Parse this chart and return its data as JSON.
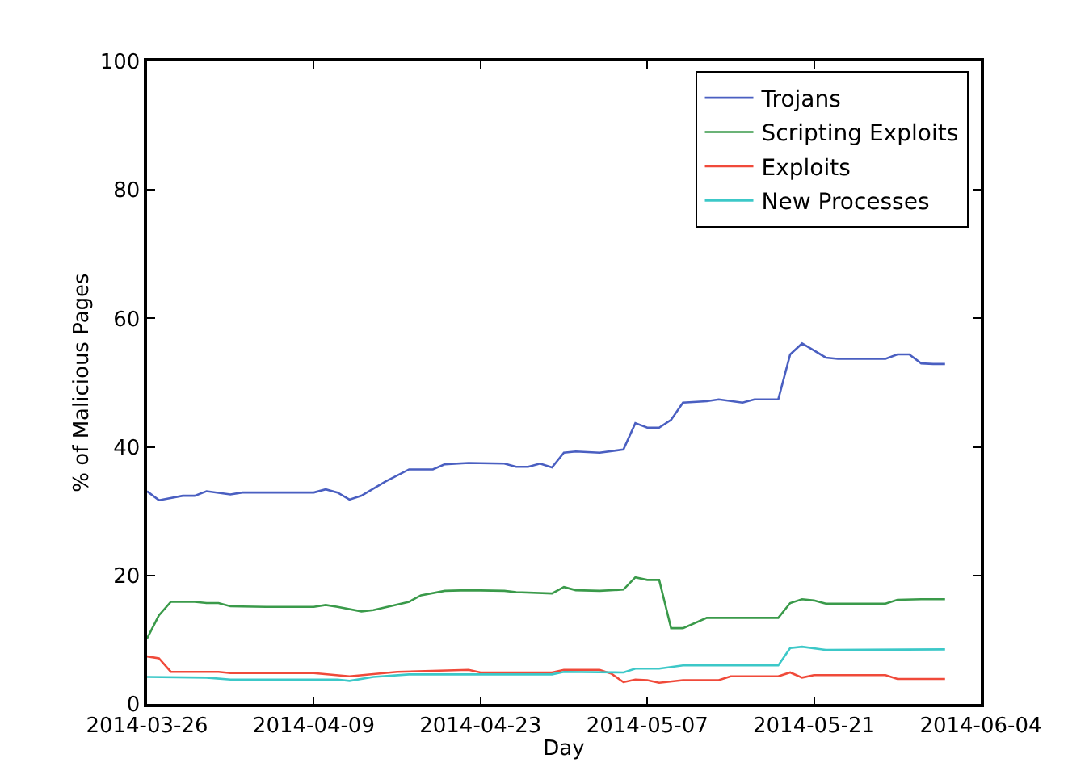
{
  "chart_data": {
    "type": "line",
    "xlabel": "Day",
    "ylabel": "% of Malicious Pages",
    "xlim": [
      "2014-03-26",
      "2014-06-04"
    ],
    "xticks": [
      "2014-03-26",
      "2014-04-09",
      "2014-04-23",
      "2014-05-07",
      "2014-05-21",
      "2014-06-04"
    ],
    "ylim": [
      0,
      100
    ],
    "yticks": [
      0,
      20,
      40,
      60,
      80,
      100
    ],
    "grid": false,
    "legend": "top right",
    "marker": "none",
    "line_style": "solid",
    "series": [
      {
        "name": "Trojans",
        "color": "#4a5fc1",
        "x": [
          "2014-03-26",
          "2014-03-27",
          "2014-03-29",
          "2014-03-30",
          "2014-03-31",
          "2014-04-02",
          "2014-04-03",
          "2014-04-09",
          "2014-04-10",
          "2014-04-11",
          "2014-04-12",
          "2014-04-13",
          "2014-04-15",
          "2014-04-17",
          "2014-04-19",
          "2014-04-20",
          "2014-04-22",
          "2014-04-25",
          "2014-04-26",
          "2014-04-27",
          "2014-04-28",
          "2014-04-29",
          "2014-04-30",
          "2014-05-01",
          "2014-05-03",
          "2014-05-05",
          "2014-05-06",
          "2014-05-07",
          "2014-05-08",
          "2014-05-09",
          "2014-05-10",
          "2014-05-12",
          "2014-05-13",
          "2014-05-15",
          "2014-05-16",
          "2014-05-18",
          "2014-05-19",
          "2014-05-20",
          "2014-05-21",
          "2014-05-22",
          "2014-05-23",
          "2014-05-27",
          "2014-05-28",
          "2014-05-29",
          "2014-05-30",
          "2014-05-31",
          "2014-06-01"
        ],
        "values": [
          33.1,
          31.7,
          32.4,
          32.4,
          33.1,
          32.6,
          32.9,
          32.9,
          33.4,
          32.9,
          31.8,
          32.4,
          34.6,
          36.5,
          36.5,
          37.3,
          37.5,
          37.4,
          36.9,
          36.9,
          37.4,
          36.8,
          39.1,
          39.3,
          39.1,
          39.6,
          43.7,
          43.0,
          43.0,
          44.2,
          46.9,
          47.1,
          47.4,
          46.9,
          47.4,
          47.4,
          54.4,
          56.1,
          55.0,
          53.9,
          53.7,
          53.7,
          54.4,
          54.4,
          53.0,
          52.9,
          52.9
        ]
      },
      {
        "name": "Scripting Exploits",
        "color": "#3a9a4a",
        "x": [
          "2014-03-26",
          "2014-03-27",
          "2014-03-28",
          "2014-03-30",
          "2014-03-31",
          "2014-04-01",
          "2014-04-02",
          "2014-04-05",
          "2014-04-09",
          "2014-04-10",
          "2014-04-11",
          "2014-04-13",
          "2014-04-14",
          "2014-04-17",
          "2014-04-18",
          "2014-04-20",
          "2014-04-22",
          "2014-04-25",
          "2014-04-26",
          "2014-04-29",
          "2014-04-30",
          "2014-05-01",
          "2014-05-03",
          "2014-05-05",
          "2014-05-06",
          "2014-05-07",
          "2014-05-08",
          "2014-05-09",
          "2014-05-10",
          "2014-05-12",
          "2014-05-15",
          "2014-05-18",
          "2014-05-19",
          "2014-05-20",
          "2014-05-21",
          "2014-05-22",
          "2014-05-27",
          "2014-05-28",
          "2014-05-30",
          "2014-06-01"
        ],
        "values": [
          10.2,
          13.8,
          15.9,
          15.9,
          15.7,
          15.7,
          15.2,
          15.1,
          15.1,
          15.4,
          15.1,
          14.4,
          14.6,
          15.9,
          16.9,
          17.6,
          17.7,
          17.6,
          17.4,
          17.2,
          18.2,
          17.7,
          17.6,
          17.8,
          19.7,
          19.3,
          19.3,
          11.8,
          11.8,
          13.4,
          13.4,
          13.4,
          15.7,
          16.3,
          16.1,
          15.6,
          15.6,
          16.2,
          16.3,
          16.3
        ]
      },
      {
        "name": "Exploits",
        "color": "#f04a3a",
        "x": [
          "2014-03-26",
          "2014-03-27",
          "2014-03-28",
          "2014-04-01",
          "2014-04-02",
          "2014-04-09",
          "2014-04-12",
          "2014-04-16",
          "2014-04-22",
          "2014-04-23",
          "2014-04-29",
          "2014-04-30",
          "2014-05-03",
          "2014-05-04",
          "2014-05-05",
          "2014-05-06",
          "2014-05-07",
          "2014-05-08",
          "2014-05-10",
          "2014-05-13",
          "2014-05-14",
          "2014-05-18",
          "2014-05-19",
          "2014-05-20",
          "2014-05-21",
          "2014-05-27",
          "2014-05-28",
          "2014-06-01"
        ],
        "values": [
          7.4,
          7.1,
          5.0,
          5.0,
          4.8,
          4.8,
          4.3,
          5.0,
          5.3,
          4.9,
          4.9,
          5.3,
          5.3,
          4.7,
          3.4,
          3.8,
          3.7,
          3.3,
          3.7,
          3.7,
          4.3,
          4.3,
          4.9,
          4.1,
          4.5,
          4.5,
          3.9,
          3.9
        ]
      },
      {
        "name": "New Processes",
        "color": "#3cc8c8",
        "x": [
          "2014-03-26",
          "2014-03-31",
          "2014-04-02",
          "2014-04-11",
          "2014-04-12",
          "2014-04-14",
          "2014-04-17",
          "2014-04-29",
          "2014-04-30",
          "2014-05-05",
          "2014-05-06",
          "2014-05-08",
          "2014-05-10",
          "2014-05-18",
          "2014-05-19",
          "2014-05-20",
          "2014-05-22",
          "2014-06-01"
        ],
        "values": [
          4.2,
          4.1,
          3.8,
          3.8,
          3.6,
          4.2,
          4.6,
          4.6,
          5.0,
          4.9,
          5.5,
          5.5,
          6.0,
          6.0,
          8.7,
          8.9,
          8.4,
          8.5
        ]
      }
    ]
  }
}
